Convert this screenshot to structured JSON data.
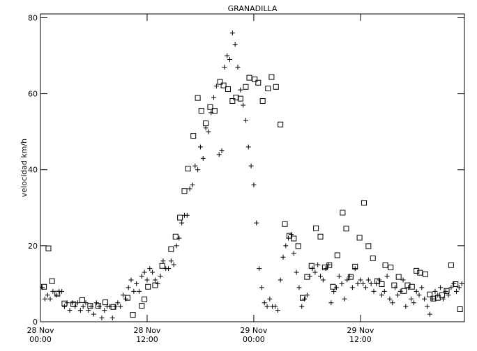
{
  "chart_data": {
    "type": "scatter",
    "title": "GRANADILLA",
    "ylabel": "velocidad km/h",
    "xlim": [
      0,
      47.7
    ],
    "ylim": [
      0,
      81
    ],
    "yticks": [
      0,
      20,
      40,
      60,
      80
    ],
    "xticks": [
      {
        "value": 0,
        "label": "28 Nov 00:00"
      },
      {
        "value": 12,
        "label": "28 Nov 12:00"
      },
      {
        "value": 24,
        "label": "29 Nov 00:00"
      },
      {
        "value": 36,
        "label": "29 Nov 12:00"
      }
    ],
    "series": [
      {
        "marker": "plus",
        "color": "#000000",
        "x": [
          0.2,
          0.5,
          0.8,
          1.1,
          1.4,
          1.8,
          2.1,
          2.4,
          2.7,
          3.0,
          3.3,
          3.6,
          3.9,
          4.2,
          4.5,
          4.8,
          5.1,
          5.4,
          5.7,
          6.0,
          6.3,
          6.6,
          6.9,
          7.2,
          7.5,
          7.8,
          8.1,
          8.4,
          8.7,
          9.0,
          9.3,
          9.6,
          9.9,
          10.2,
          10.5,
          10.8,
          11.1,
          11.4,
          11.7,
          12.0,
          12.3,
          12.6,
          12.9,
          13.2,
          13.5,
          13.8,
          14.1,
          14.4,
          14.7,
          15.0,
          15.3,
          15.6,
          15.9,
          16.2,
          16.5,
          16.8,
          17.1,
          17.4,
          17.7,
          18.0,
          18.3,
          18.6,
          18.9,
          19.2,
          19.5,
          19.8,
          20.1,
          20.4,
          20.7,
          21.0,
          21.3,
          21.6,
          21.9,
          22.2,
          22.5,
          22.8,
          23.1,
          23.4,
          23.7,
          24.0,
          24.3,
          24.6,
          24.9,
          25.2,
          25.5,
          25.8,
          26.1,
          26.4,
          26.7,
          27.0,
          27.3,
          27.6,
          27.9,
          28.2,
          28.5,
          28.8,
          29.1,
          29.4,
          29.7,
          30.0,
          30.3,
          30.6,
          30.9,
          31.2,
          31.5,
          31.8,
          32.1,
          32.4,
          32.7,
          33.0,
          33.3,
          33.6,
          33.9,
          34.2,
          34.5,
          34.8,
          35.1,
          35.4,
          35.7,
          36.0,
          36.3,
          36.6,
          36.9,
          37.2,
          37.5,
          37.8,
          38.1,
          38.4,
          38.7,
          39.0,
          39.3,
          39.6,
          39.9,
          40.2,
          40.5,
          40.8,
          41.1,
          41.4,
          41.7,
          42.0,
          42.3,
          42.6,
          42.9,
          43.2,
          43.5,
          43.8,
          44.1,
          44.4,
          44.7,
          45.0,
          45.3,
          45.6,
          45.9,
          46.2,
          46.5,
          46.8,
          47.1,
          47.4
        ],
        "values": [
          9,
          6,
          7,
          6,
          8,
          7,
          8,
          8,
          4,
          5,
          3,
          5,
          4,
          5,
          3,
          4,
          5,
          3,
          4,
          2,
          5,
          4,
          1,
          3,
          4,
          4,
          1,
          4,
          5,
          4,
          7,
          6,
          9,
          11,
          8,
          10,
          8,
          12,
          13,
          11,
          14,
          13,
          11,
          10,
          12,
          16,
          14,
          14,
          16,
          15,
          20,
          22,
          26,
          28,
          28,
          35,
          36,
          41,
          40,
          46,
          43,
          51,
          50,
          55,
          59,
          62,
          44,
          45,
          67,
          70,
          69,
          76,
          73,
          67,
          61,
          57,
          53,
          46,
          41,
          36,
          26,
          14,
          9,
          5,
          4,
          6,
          4,
          4,
          3,
          11,
          17,
          20,
          22,
          23,
          18,
          13,
          9,
          4,
          6,
          7,
          12,
          14,
          13,
          15,
          12,
          11,
          14,
          15,
          5,
          8,
          9,
          12,
          10,
          6,
          11,
          12,
          9,
          14,
          10,
          11,
          10,
          9,
          11,
          10,
          8,
          10,
          11,
          7,
          8,
          12,
          6,
          5,
          9,
          7,
          8,
          11,
          4,
          9,
          6,
          5,
          8,
          7,
          9,
          6,
          4,
          2,
          6,
          8,
          7,
          9,
          6,
          8,
          7,
          9,
          10,
          8,
          9,
          10
        ]
      },
      {
        "marker": "square",
        "color": "#000000",
        "x": [
          0.4,
          0.9,
          1.3,
          1.9,
          2.7,
          3.7,
          4.7,
          5.6,
          6.5,
          7.3,
          8.2,
          9.8,
          10.4,
          11.4,
          11.7,
          12.1,
          12.9,
          13.7,
          14.7,
          15.2,
          15.7,
          16.2,
          16.6,
          17.2,
          17.7,
          18.1,
          18.6,
          19.1,
          19.6,
          20.2,
          20.6,
          21.1,
          21.6,
          22.0,
          22.5,
          23.1,
          23.5,
          24.1,
          24.5,
          25.0,
          25.6,
          26.0,
          26.5,
          27.0,
          27.5,
          28.0,
          28.5,
          29.0,
          29.5,
          30.0,
          30.5,
          31.0,
          31.5,
          32.0,
          32.5,
          32.9,
          33.4,
          34.0,
          34.4,
          34.9,
          35.4,
          35.9,
          36.4,
          36.9,
          37.4,
          37.9,
          38.4,
          38.8,
          39.4,
          39.8,
          40.3,
          40.9,
          41.3,
          41.8,
          42.3,
          42.7,
          43.3,
          43.8,
          44.2,
          44.7,
          45.2,
          45.7,
          46.2,
          46.7,
          47.2
        ],
        "values": [
          9.2,
          19.3,
          10.7,
          7.4,
          4.8,
          4.6,
          5.7,
          4.2,
          4.2,
          5.1,
          3.9,
          6.3,
          1.8,
          4.2,
          5.9,
          9.2,
          9.6,
          14.7,
          19.1,
          22.4,
          27.4,
          34.4,
          40.3,
          48.9,
          58.9,
          55.5,
          52.2,
          56.5,
          55.5,
          63.1,
          62.2,
          61.2,
          58.1,
          59.0,
          58.7,
          61.8,
          64.2,
          63.8,
          62.9,
          58.1,
          61.4,
          64.4,
          61.8,
          51.9,
          25.7,
          22.6,
          21.9,
          19.9,
          6.3,
          11.8,
          14.7,
          24.6,
          22.4,
          14.3,
          14.9,
          9.2,
          17.5,
          28.7,
          24.5,
          11.8,
          14.5,
          22.1,
          31.3,
          19.9,
          16.7,
          10.7,
          9.9,
          14.9,
          14.3,
          9.6,
          11.8,
          8.1,
          9.6,
          9.2,
          13.4,
          12.9,
          12.5,
          7.2,
          6.1,
          6.3,
          7.0,
          8.1,
          14.9,
          9.9,
          3.3
        ]
      }
    ]
  }
}
